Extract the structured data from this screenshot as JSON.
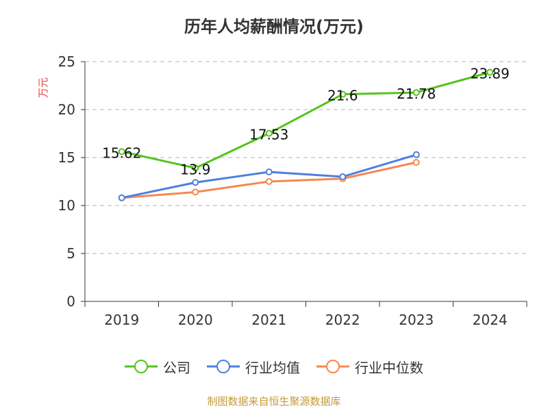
{
  "title": "历年人均薪酬情况(万元)",
  "watermark": "制图数据来自恒生聚源数据库",
  "colors": {
    "text": "#333333",
    "ylabel": "#e34646",
    "axis": "#333333",
    "grid": "#b5b5b5"
  },
  "chart_data": {
    "type": "line",
    "categories": [
      "2019",
      "2020",
      "2021",
      "2022",
      "2023",
      "2024"
    ],
    "ylabel": "万元",
    "ylim": [
      0,
      25
    ],
    "yticks": [
      0,
      5,
      10,
      15,
      20,
      25
    ],
    "grid": true,
    "legend_position": "bottom",
    "series": [
      {
        "name": "公司",
        "color": "#52c41a",
        "values": [
          15.62,
          13.9,
          17.53,
          21.6,
          21.78,
          23.89
        ],
        "labels": [
          "15.62",
          "13.9",
          "17.53",
          "21.6",
          "21.78",
          "23.89"
        ]
      },
      {
        "name": "行业均值",
        "color": "#4f7fde",
        "values": [
          10.8,
          12.4,
          13.5,
          13.0,
          15.3,
          null
        ]
      },
      {
        "name": "行业中位数",
        "color": "#f5884f",
        "values": [
          10.8,
          11.4,
          12.5,
          12.8,
          14.5,
          null
        ]
      }
    ]
  }
}
